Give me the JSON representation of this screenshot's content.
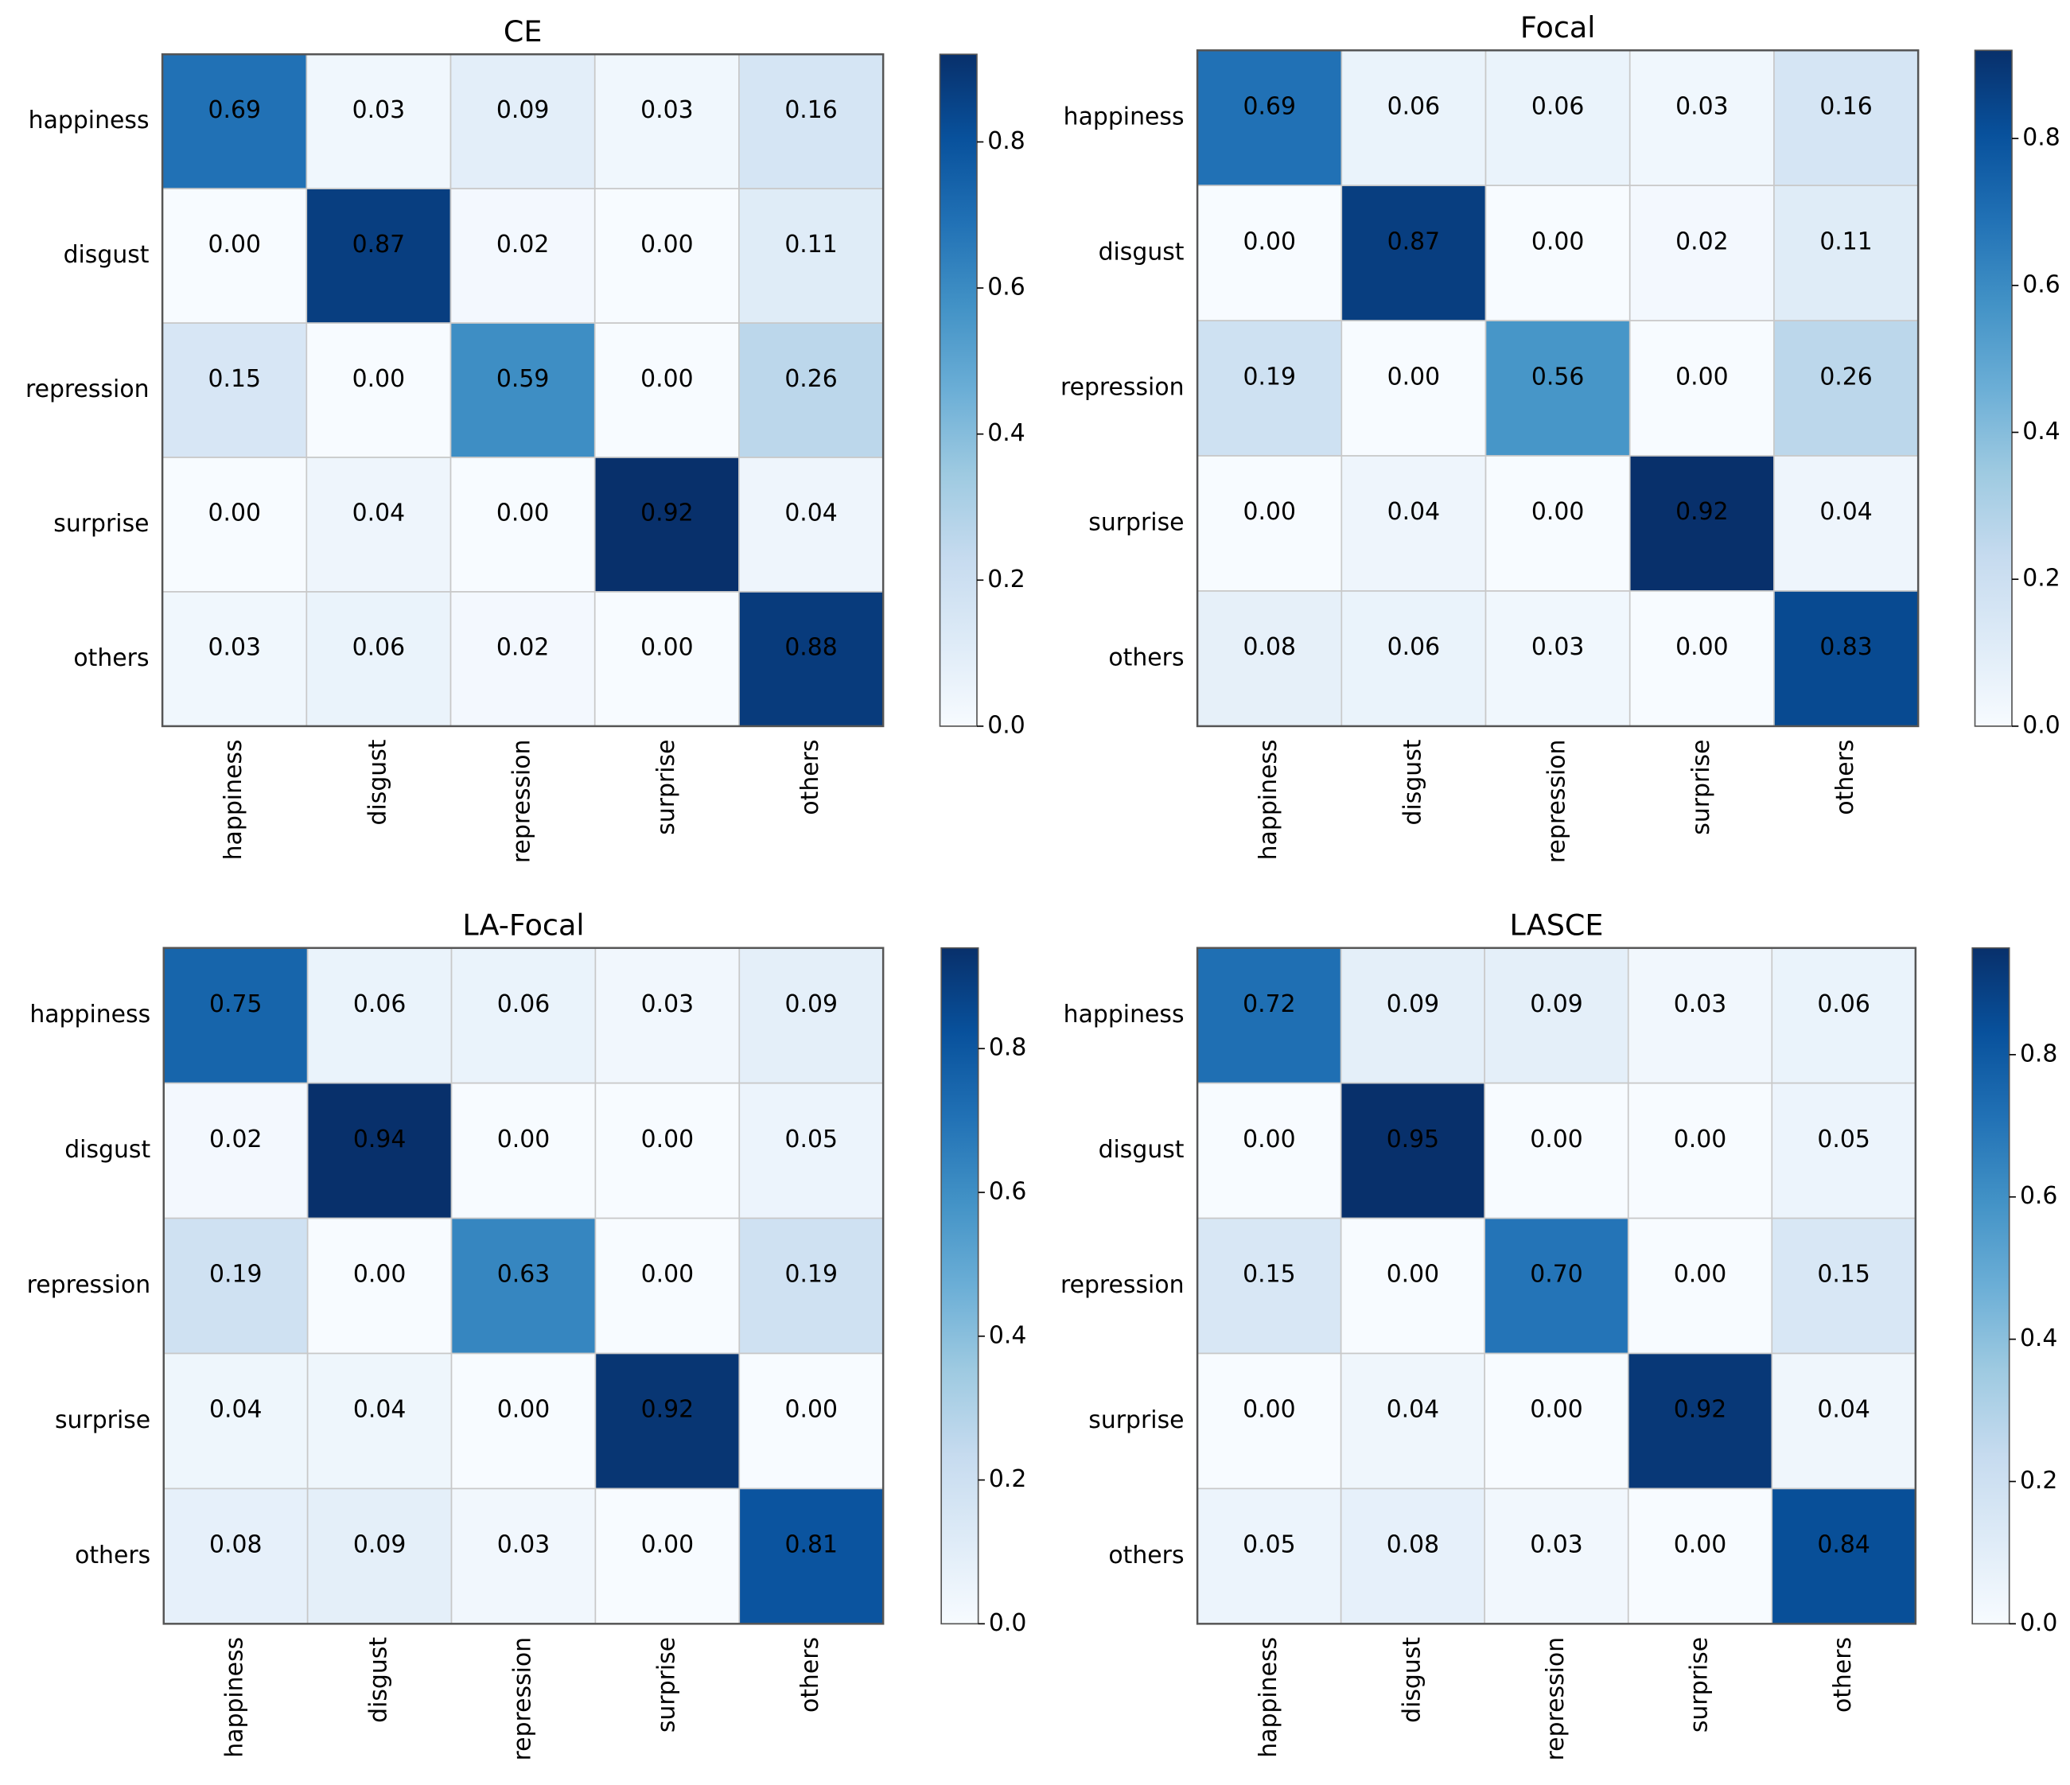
{
  "chart_data": [
    {
      "type": "heatmap",
      "title": "CE",
      "colormap": "Blues",
      "x_categories": [
        "happiness",
        "disgust",
        "repression",
        "surprise",
        "others"
      ],
      "y_categories": [
        "happiness",
        "disgust",
        "repression",
        "surprise",
        "others"
      ],
      "values": [
        [
          0.69,
          0.03,
          0.09,
          0.03,
          0.16
        ],
        [
          0,
          0.87,
          0.02,
          0,
          0.11
        ],
        [
          0.15,
          0,
          0.59,
          0,
          0.26
        ],
        [
          0,
          0.04,
          0,
          0.92,
          0.04
        ],
        [
          0.03,
          0.06,
          0.02,
          0,
          0.88
        ]
      ],
      "value_labels": [
        [
          "0.69",
          "0.03",
          "0.09",
          "0.03",
          "0.16"
        ],
        [
          "0.00",
          "0.87",
          "0.02",
          "0.00",
          "0.11"
        ],
        [
          "0.15",
          "0.00",
          "0.59",
          "0.00",
          "0.26"
        ],
        [
          "0.00",
          "0.04",
          "0.00",
          "0.92",
          "0.04"
        ],
        [
          "0.03",
          "0.06",
          "0.02",
          "0.00",
          "0.88"
        ]
      ],
      "zlim": [
        0,
        0.92
      ],
      "zticks": [
        {
          "value": 0,
          "label": "0.0"
        },
        {
          "value": 0.2,
          "label": "0.2"
        },
        {
          "value": 0.4,
          "label": "0.4"
        },
        {
          "value": 0.6,
          "label": "0.6"
        },
        {
          "value": 0.8,
          "label": "0.8"
        }
      ]
    },
    {
      "type": "heatmap",
      "title": "Focal",
      "colormap": "Blues",
      "x_categories": [
        "happiness",
        "disgust",
        "repression",
        "surprise",
        "others"
      ],
      "y_categories": [
        "happiness",
        "disgust",
        "repression",
        "surprise",
        "others"
      ],
      "values": [
        [
          0.69,
          0.06,
          0.06,
          0.03,
          0.16
        ],
        [
          0,
          0.87,
          0,
          0.02,
          0.11
        ],
        [
          0.19,
          0,
          0.56,
          0,
          0.26
        ],
        [
          0,
          0.04,
          0,
          0.92,
          0.04
        ],
        [
          0.08,
          0.06,
          0.03,
          0,
          0.83
        ]
      ],
      "value_labels": [
        [
          "0.69",
          "0.06",
          "0.06",
          "0.03",
          "0.16"
        ],
        [
          "0.00",
          "0.87",
          "0.00",
          "0.02",
          "0.11"
        ],
        [
          "0.19",
          "0.00",
          "0.56",
          "0.00",
          "0.26"
        ],
        [
          "0.00",
          "0.04",
          "0.00",
          "0.92",
          "0.04"
        ],
        [
          "0.08",
          "0.06",
          "0.03",
          "0.00",
          "0.83"
        ]
      ],
      "zlim": [
        0,
        0.92
      ],
      "zticks": [
        {
          "value": 0,
          "label": "0.0"
        },
        {
          "value": 0.2,
          "label": "0.2"
        },
        {
          "value": 0.4,
          "label": "0.4"
        },
        {
          "value": 0.6,
          "label": "0.6"
        },
        {
          "value": 0.8,
          "label": "0.8"
        }
      ]
    },
    {
      "type": "heatmap",
      "title": "LA-Focal",
      "colormap": "Blues",
      "x_categories": [
        "happiness",
        "disgust",
        "repression",
        "surprise",
        "others"
      ],
      "y_categories": [
        "happiness",
        "disgust",
        "repression",
        "surprise",
        "others"
      ],
      "values": [
        [
          0.75,
          0.06,
          0.06,
          0.03,
          0.09
        ],
        [
          0.02,
          0.94,
          0,
          0,
          0.05
        ],
        [
          0.19,
          0,
          0.63,
          0,
          0.19
        ],
        [
          0.04,
          0.04,
          0,
          0.92,
          0
        ],
        [
          0.08,
          0.09,
          0.03,
          0,
          0.81
        ]
      ],
      "value_labels": [
        [
          "0.75",
          "0.06",
          "0.06",
          "0.03",
          "0.09"
        ],
        [
          "0.02",
          "0.94",
          "0.00",
          "0.00",
          "0.05"
        ],
        [
          "0.19",
          "0.00",
          "0.63",
          "0.00",
          "0.19"
        ],
        [
          "0.04",
          "0.04",
          "0.00",
          "0.92",
          "0.00"
        ],
        [
          "0.08",
          "0.09",
          "0.03",
          "0.00",
          "0.81"
        ]
      ],
      "zlim": [
        0,
        0.94
      ],
      "zticks": [
        {
          "value": 0,
          "label": "0.0"
        },
        {
          "value": 0.2,
          "label": "0.2"
        },
        {
          "value": 0.4,
          "label": "0.4"
        },
        {
          "value": 0.6,
          "label": "0.6"
        },
        {
          "value": 0.8,
          "label": "0.8"
        }
      ]
    },
    {
      "type": "heatmap",
      "title": "LASCE",
      "colormap": "Blues",
      "x_categories": [
        "happiness",
        "disgust",
        "repression",
        "surprise",
        "others"
      ],
      "y_categories": [
        "happiness",
        "disgust",
        "repression",
        "surprise",
        "others"
      ],
      "values": [
        [
          0.72,
          0.09,
          0.09,
          0.03,
          0.06
        ],
        [
          0,
          0.95,
          0,
          0,
          0.05
        ],
        [
          0.15,
          0,
          0.7,
          0,
          0.15
        ],
        [
          0,
          0.04,
          0,
          0.92,
          0.04
        ],
        [
          0.05,
          0.08,
          0.03,
          0,
          0.84
        ]
      ],
      "value_labels": [
        [
          "0.72",
          "0.09",
          "0.09",
          "0.03",
          "0.06"
        ],
        [
          "0.00",
          "0.95",
          "0.00",
          "0.00",
          "0.05"
        ],
        [
          "0.15",
          "0.00",
          "0.70",
          "0.00",
          "0.15"
        ],
        [
          "0.00",
          "0.04",
          "0.00",
          "0.92",
          "0.04"
        ],
        [
          "0.05",
          "0.08",
          "0.03",
          "0.00",
          "0.84"
        ]
      ],
      "zlim": [
        0,
        0.95
      ],
      "zticks": [
        {
          "value": 0,
          "label": "0.0"
        },
        {
          "value": 0.2,
          "label": "0.2"
        },
        {
          "value": 0.4,
          "label": "0.4"
        },
        {
          "value": 0.6,
          "label": "0.6"
        },
        {
          "value": 0.8,
          "label": "0.8"
        }
      ]
    }
  ]
}
